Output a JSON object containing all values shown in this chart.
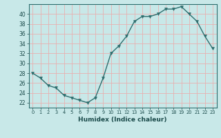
{
  "x": [
    0,
    1,
    2,
    3,
    4,
    5,
    6,
    7,
    8,
    9,
    10,
    11,
    12,
    13,
    14,
    15,
    16,
    17,
    18,
    19,
    20,
    21,
    22,
    23
  ],
  "y": [
    28,
    27,
    25.5,
    25,
    23.5,
    23,
    22.5,
    22,
    23,
    27,
    32,
    33.5,
    35.5,
    38.5,
    39.5,
    39.5,
    40,
    41,
    41,
    41.5,
    40,
    38.5,
    35.5,
    33
  ],
  "line_color": "#2d6e6e",
  "marker_color": "#2d6e6e",
  "bg_color": "#c8e8e8",
  "grid_color": "#e8b0b0",
  "xlabel": "Humidex (Indice chaleur)",
  "ylim": [
    21,
    42
  ],
  "yticks": [
    22,
    24,
    26,
    28,
    30,
    32,
    34,
    36,
    38,
    40
  ],
  "xlim": [
    -0.5,
    23.5
  ]
}
